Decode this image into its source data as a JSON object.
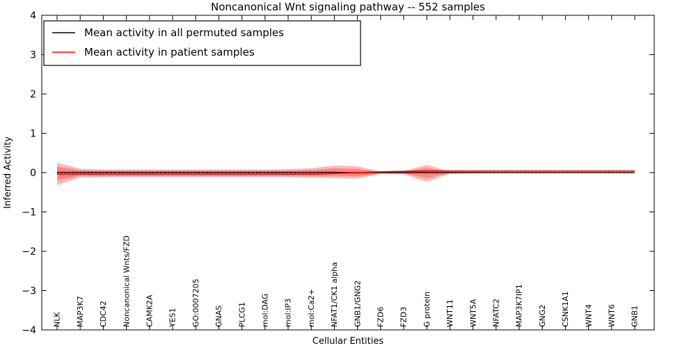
{
  "chart_data": {
    "type": "line",
    "title": "Noncanonical Wnt signaling pathway -- 552 samples",
    "xlabel": "Cellular Entities",
    "ylabel": "Inferred Activity",
    "ylim": [
      -4,
      4
    ],
    "yticks": [
      4,
      3,
      2,
      1,
      0,
      -1,
      -2,
      -3,
      -4
    ],
    "grid": false,
    "legend_position": "upper left",
    "legend": [
      {
        "label": "Mean activity in all permuted samples",
        "color": "#000000"
      },
      {
        "label": "Mean activity in patient samples",
        "color": "#ff0000"
      }
    ],
    "categories": [
      "NLK",
      "MAP3K7",
      "CDC42",
      "Noncanonical Wnts/FZD",
      "CAMK2A",
      "YES1",
      "GO:0007205",
      "GNAS",
      "PLCG1",
      "mol:DAG",
      "mol:IP3",
      "mol:Ca2+",
      "NFAT1/CK1 alpha",
      "GNB1/GNG2",
      "FZD6",
      "FZD3",
      "G protein",
      "WNT11",
      "WNT5A",
      "NFATC2",
      "MAP3K7IP1",
      "GNG2",
      "CSNK1A1",
      "WNT4",
      "WNT6",
      "GNB1"
    ],
    "series": [
      {
        "name": "Mean activity in all permuted samples",
        "color": "#000000",
        "style": "solid",
        "values": [
          0.01,
          0.01,
          0.01,
          0.01,
          0.01,
          0.01,
          0.01,
          0.01,
          0.01,
          0.01,
          0.01,
          0.01,
          0.01,
          0.0,
          0.0,
          0.0,
          0.0,
          0.0,
          0.0,
          0.0,
          0.0,
          0.0,
          0.0,
          0.0,
          0.0,
          0.0
        ]
      },
      {
        "name": "Mean activity in patient samples",
        "color": "#ff0000",
        "style": "solid",
        "values": [
          -0.035,
          -0.035,
          -0.035,
          -0.035,
          -0.035,
          -0.035,
          -0.035,
          -0.035,
          -0.035,
          -0.035,
          -0.035,
          -0.035,
          -0.02,
          0.0,
          0.02,
          0.03,
          0.04,
          0.04,
          0.04,
          0.04,
          0.04,
          0.04,
          0.04,
          0.04,
          0.04,
          0.04
        ]
      }
    ],
    "zero_line": {
      "value": 0,
      "style": "dotted",
      "color": "#000000"
    },
    "band": {
      "color": "#ff0000",
      "alpha": 0.28,
      "inner_scale": 0.6,
      "upper": [
        0.25,
        0.1,
        0.08,
        0.08,
        0.08,
        0.08,
        0.08,
        0.08,
        0.08,
        0.08,
        0.09,
        0.11,
        0.18,
        0.16,
        0.03,
        0.04,
        0.2,
        0.03,
        0.02,
        0.015,
        0.015,
        0.015,
        0.015,
        0.015,
        0.015,
        0.015
      ],
      "lower": [
        -0.32,
        -0.12,
        -0.11,
        -0.11,
        -0.11,
        -0.11,
        -0.11,
        -0.11,
        -0.11,
        -0.11,
        -0.11,
        -0.12,
        -0.14,
        -0.15,
        -0.03,
        -0.04,
        -0.23,
        -0.03,
        -0.02,
        -0.015,
        -0.015,
        -0.015,
        -0.015,
        -0.015,
        -0.015,
        -0.015
      ]
    }
  }
}
